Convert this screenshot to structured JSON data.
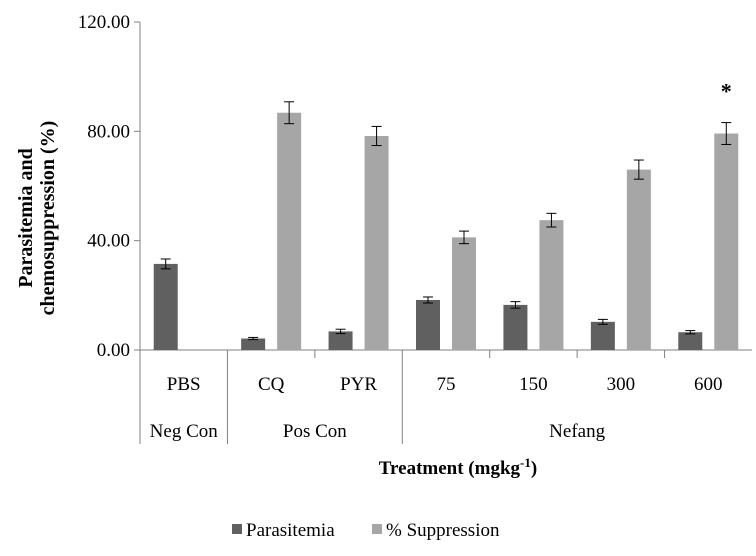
{
  "chart_data": {
    "type": "bar",
    "title": "",
    "ylabel_line1": "Parasitemia and",
    "ylabel_line2": "chemosuppression (%)",
    "xlabel_main": "Treatment (mgkg",
    "xlabel_sup": "-1",
    "xlabel_close": ")",
    "ylim": [
      0,
      120
    ],
    "yticks": [
      "0.00",
      "40.00",
      "80.00",
      "120.00"
    ],
    "ytick_values": [
      0,
      40,
      80,
      120
    ],
    "categories": [
      "PBS",
      "CQ",
      "PYR",
      "75",
      "150",
      "300",
      "600"
    ],
    "groups": [
      {
        "label": "Neg Con",
        "span": [
          0,
          0
        ]
      },
      {
        "label": "Pos Con",
        "span": [
          1,
          2
        ]
      },
      {
        "label": "Nefang",
        "span": [
          3,
          6
        ]
      }
    ],
    "series": [
      {
        "name": "Parasitemia",
        "color": "#606060",
        "values": [
          31.5,
          4.2,
          6.8,
          18.3,
          16.5,
          10.3,
          6.5
        ],
        "errors": [
          1.8,
          0.4,
          0.8,
          1.1,
          1.2,
          0.9,
          0.6
        ]
      },
      {
        "name": "% Suppression",
        "color": "#a6a6a6",
        "values": [
          null,
          86.8,
          78.3,
          41.2,
          47.5,
          66.0,
          79.2
        ],
        "errors": [
          null,
          4.0,
          3.5,
          2.3,
          2.5,
          3.5,
          4.0
        ]
      }
    ],
    "annotations": [
      {
        "category": "600",
        "series": "% Suppression",
        "text": "*"
      }
    ],
    "legend_position": "bottom",
    "grid": false
  }
}
